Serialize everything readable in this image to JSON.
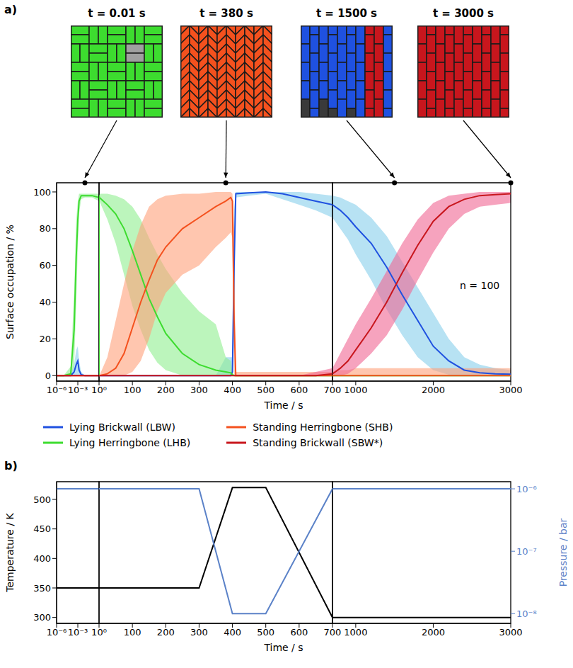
{
  "chart_data": [
    {
      "panel": "a)",
      "type": "line",
      "snapshots": [
        {
          "time": 0.01,
          "label": "t = 0.01 s"
        },
        {
          "time": 380,
          "label": "t = 380 s"
        },
        {
          "time": 1500,
          "label": "t = 1500 s"
        },
        {
          "time": 3000,
          "label": "t = 3000 s"
        }
      ],
      "x_label": "Time / s",
      "y_label": "Surface occupation / %",
      "x_segments": [
        {
          "xlim": [
            1e-06,
            1
          ],
          "log": "x",
          "xticks": [
            {
              "value": 1e-06,
              "label": "10⁻⁶"
            },
            {
              "value": 0.001,
              "label": "10⁻³"
            },
            {
              "value": 1,
              "label": "10⁰"
            }
          ]
        },
        {
          "xlim": [
            0,
            700
          ],
          "xticks": [
            100,
            200,
            300,
            400,
            500,
            600,
            700
          ]
        },
        {
          "xlim": [
            700,
            3000
          ],
          "xticks": [
            1000,
            2000,
            3000
          ]
        }
      ],
      "ylim": [
        -3,
        105
      ],
      "yticks": [
        0,
        20,
        40,
        60,
        80,
        100
      ],
      "annotation": "n = 100",
      "legend": "bottom",
      "x": [
        1e-06,
        1e-05,
        0.0001,
        0.0003,
        0.0006,
        0.001,
        0.0015,
        0.003,
        0.01,
        0.1,
        1,
        25,
        50,
        75,
        100,
        125,
        150,
        175,
        200,
        250,
        300,
        350,
        380,
        395,
        400,
        405,
        410,
        450,
        500,
        550,
        600,
        650,
        700,
        800,
        900,
        1000,
        1200,
        1400,
        1600,
        1800,
        2000,
        2200,
        2400,
        2600,
        2800,
        3000
      ],
      "series": [
        {
          "name": "Lying Brickwall (LBW)",
          "color": "#1f51e0",
          "values": [
            0,
            0,
            0,
            2,
            6,
            8,
            3,
            0.5,
            0,
            0,
            0,
            0,
            0,
            0,
            0,
            0,
            0,
            0,
            0,
            0,
            0,
            0,
            0,
            0,
            2,
            60,
            99,
            99.5,
            100,
            99,
            97,
            95,
            93,
            90,
            86,
            81,
            72,
            59,
            44,
            30,
            16,
            8,
            3,
            1.5,
            1,
            0.8
          ],
          "lower": [
            0,
            0,
            0,
            0,
            0,
            0,
            0,
            0,
            0,
            0,
            0,
            0,
            0,
            0,
            0,
            0,
            0,
            0,
            0,
            0,
            0,
            0,
            0,
            0,
            0,
            20,
            97,
            98,
            99,
            96,
            93,
            90,
            86,
            80,
            74,
            66,
            52,
            36,
            22,
            10,
            3,
            0.5,
            0,
            0,
            0,
            0
          ],
          "upper": [
            0,
            0,
            0.5,
            6,
            14,
            16,
            8,
            2,
            0,
            0,
            0,
            0,
            0,
            0,
            0,
            0,
            0,
            0,
            0,
            0,
            0,
            0,
            10,
            10,
            10,
            90,
            100,
            100,
            100,
            100,
            100,
            99,
            98,
            97,
            95,
            93,
            86,
            76,
            62,
            48,
            34,
            20,
            10,
            6,
            4,
            3
          ]
        },
        {
          "name": "Lying Herringbone (LHB)",
          "color": "#3ddc2f",
          "values": [
            0,
            0,
            1,
            25,
            65,
            85,
            95,
            98,
            98,
            98,
            97,
            93,
            88,
            80,
            68,
            55,
            42,
            32,
            23,
            12,
            6,
            3,
            2,
            1.5,
            0.5,
            0,
            0,
            0,
            0,
            0,
            0,
            0,
            0,
            0,
            0,
            0,
            0,
            0,
            0,
            0,
            0,
            0,
            0,
            0,
            0,
            0
          ],
          "lower": [
            0,
            0,
            0,
            5,
            40,
            70,
            88,
            96,
            97,
            97,
            95,
            85,
            72,
            55,
            38,
            25,
            14,
            7,
            3,
            0,
            0,
            0,
            0,
            0,
            0,
            0,
            0,
            0,
            0,
            0,
            0,
            0,
            0,
            0,
            0,
            0,
            0,
            0,
            0,
            0,
            0,
            0,
            0,
            0,
            0,
            0
          ],
          "upper": [
            0,
            0,
            5,
            45,
            85,
            95,
            99,
            99,
            99,
            99,
            99,
            99,
            98,
            96,
            92,
            85,
            75,
            66,
            58,
            45,
            35,
            28,
            10,
            8,
            2,
            0,
            0,
            0,
            0,
            0,
            0,
            0,
            0,
            0,
            0,
            0,
            0,
            0,
            0,
            0,
            0,
            0,
            0,
            0,
            0,
            0
          ]
        },
        {
          "name": "Standing Herringbone (SHB)",
          "color": "#f4511e",
          "values": [
            0,
            0,
            0,
            0,
            0,
            0,
            0,
            0,
            0,
            0,
            0,
            1,
            4,
            12,
            26,
            40,
            52,
            63,
            70,
            80,
            86,
            92,
            95,
            97,
            95,
            30,
            0,
            0,
            0,
            0,
            0,
            0,
            0,
            0,
            0,
            0,
            0,
            0,
            0,
            0,
            0,
            0,
            0,
            0,
            0,
            0
          ],
          "lower": [
            0,
            0,
            0,
            0,
            0,
            0,
            0,
            0,
            0,
            0,
            0,
            0,
            0,
            0,
            2,
            8,
            20,
            35,
            45,
            55,
            60,
            70,
            75,
            78,
            75,
            0,
            0,
            0,
            0,
            0,
            0,
            0,
            0,
            0,
            0,
            0,
            0,
            0,
            0,
            0,
            0,
            0,
            0,
            0,
            0,
            0
          ],
          "upper": [
            0,
            0,
            0,
            0,
            0,
            0,
            0,
            0,
            0,
            0,
            0,
            10,
            30,
            50,
            68,
            82,
            92,
            96,
            98,
            99,
            99,
            100,
            100,
            100,
            99,
            80,
            2,
            2,
            2,
            2,
            2,
            2,
            2,
            3,
            3,
            4,
            4,
            4,
            4,
            4,
            4,
            4,
            4,
            4,
            4,
            4
          ]
        },
        {
          "name": "Standing Brickwall (SBW*)",
          "color": "#c8161d",
          "values": [
            0,
            0,
            0,
            0,
            0,
            0,
            0,
            0,
            0,
            0,
            0,
            0,
            0,
            0,
            0,
            0,
            0,
            0,
            0,
            0,
            0,
            0,
            0,
            0,
            0,
            0,
            0,
            0,
            0,
            0,
            0,
            0,
            1,
            4,
            8,
            14,
            26,
            40,
            56,
            71,
            84,
            92,
            96,
            98,
            98.5,
            99
          ],
          "lower": [
            0,
            0,
            0,
            0,
            0,
            0,
            0,
            0,
            0,
            0,
            0,
            0,
            0,
            0,
            0,
            0,
            0,
            0,
            0,
            0,
            0,
            0,
            0,
            0,
            0,
            0,
            0,
            0,
            0,
            0,
            0,
            0,
            0,
            0,
            1,
            4,
            12,
            22,
            36,
            52,
            67,
            80,
            88,
            92,
            93,
            94
          ],
          "upper": [
            0,
            0,
            0,
            0,
            0,
            0,
            0,
            0,
            0,
            0,
            0,
            0,
            0,
            0,
            0,
            0,
            0,
            0,
            0,
            0,
            0,
            0,
            0,
            0,
            0,
            0,
            0,
            0,
            0,
            0,
            0,
            2,
            4,
            12,
            20,
            28,
            42,
            57,
            72,
            85,
            94,
            98,
            99,
            100,
            100,
            100
          ]
        }
      ]
    },
    {
      "panel": "b)",
      "type": "line",
      "x_label": "Time / s",
      "y_label": "Temperature / K",
      "y2_label": "Pressure / bar",
      "x_segments": [
        {
          "xlim": [
            1e-06,
            1
          ],
          "log": "x",
          "xticks": [
            {
              "value": 1e-06,
              "label": "10⁻⁶"
            },
            {
              "value": 0.001,
              "label": "10⁻³"
            },
            {
              "value": 1,
              "label": "10⁰"
            }
          ]
        },
        {
          "xlim": [
            0,
            700
          ],
          "xticks": [
            100,
            200,
            300,
            400,
            500,
            600,
            700
          ]
        },
        {
          "xlim": [
            700,
            3000
          ],
          "xticks": [
            1000,
            2000,
            3000
          ]
        }
      ],
      "ylim": [
        290,
        530
      ],
      "yticks": [
        300,
        350,
        400,
        450,
        500
      ],
      "y2lim": [
        7e-09,
        1.3e-06
      ],
      "y2ticks": [
        {
          "value": 1e-08,
          "label": "10⁻⁸"
        },
        {
          "value": 1e-07,
          "label": "10⁻⁷"
        },
        {
          "value": 1e-06,
          "label": "10⁻⁶"
        }
      ],
      "log": "y2",
      "x": [
        1e-06,
        300,
        400,
        500,
        700,
        3000
      ],
      "series": [
        {
          "color": "#000000",
          "axis": "y",
          "values": [
            350,
            350,
            520,
            520,
            300,
            300
          ]
        },
        {
          "color": "#5b82c8",
          "axis": "y2",
          "values": [
            1e-06,
            1e-06,
            1e-08,
            1e-08,
            1e-06,
            1e-06
          ]
        }
      ]
    }
  ]
}
